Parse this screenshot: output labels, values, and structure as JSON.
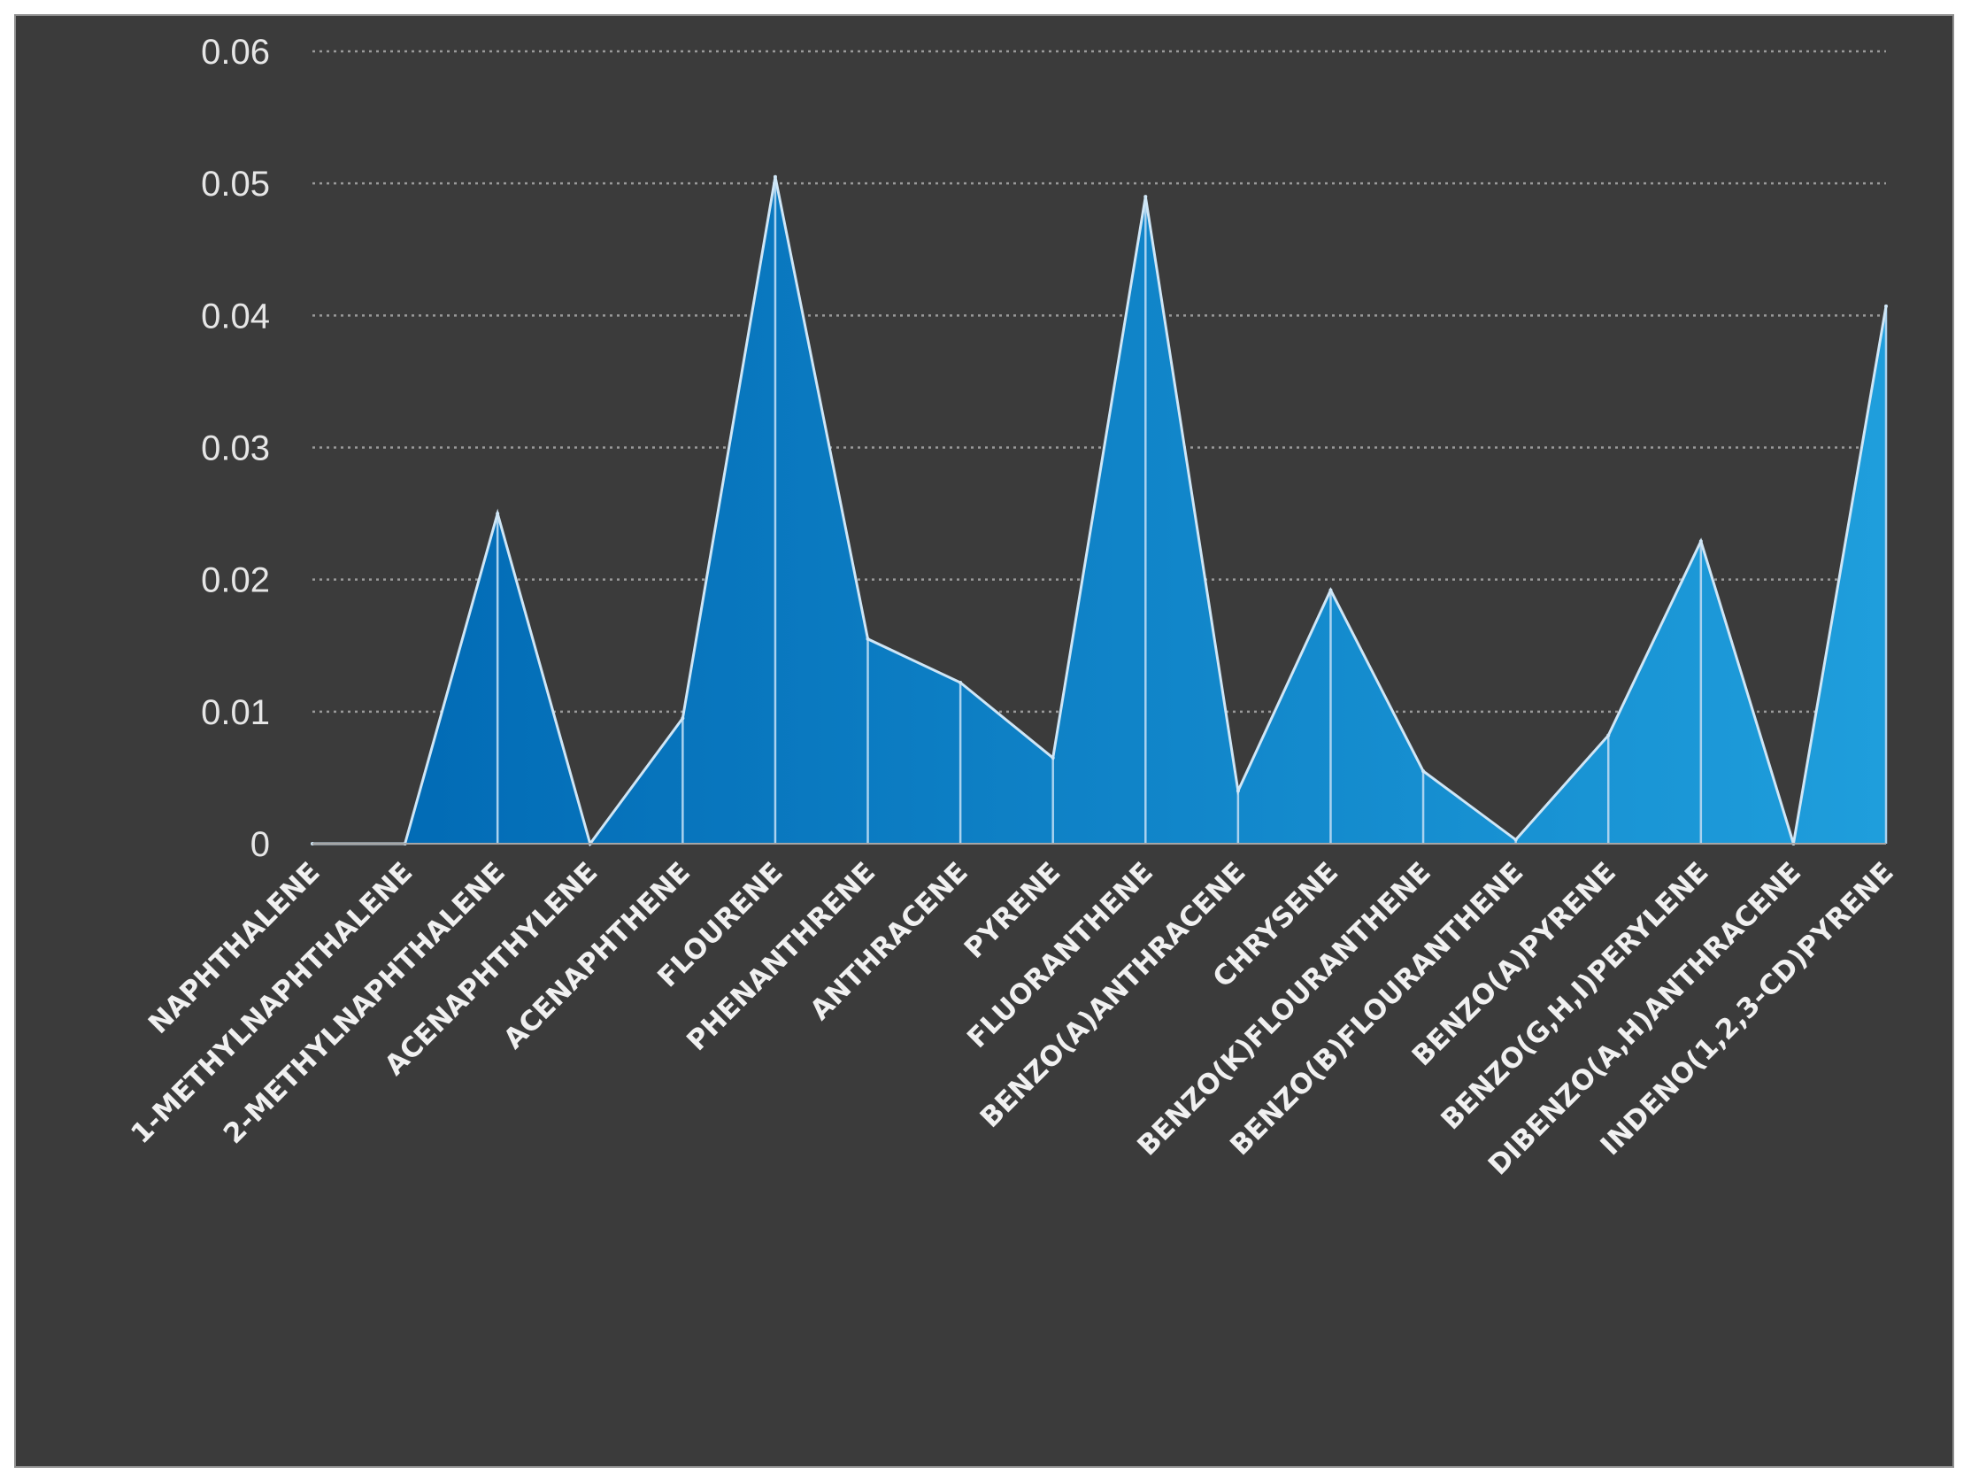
{
  "chart_data": {
    "type": "area",
    "title": "",
    "xlabel": "",
    "ylabel": "",
    "ylim": [
      0,
      0.06
    ],
    "yticks": [
      0,
      0.01,
      0.02,
      0.03,
      0.04,
      0.05,
      0.06
    ],
    "ytick_labels": [
      "0",
      "0.01",
      "0.02",
      "0.03",
      "0.04",
      "0.05",
      "0.06"
    ],
    "grid": true,
    "categories": [
      "NAPHTHALENE",
      "1-METHYLNAPHTHALENE",
      "2-METHYLNAPHTHALENE",
      "ACENAPHTHYLENE",
      "ACENAPHTHENE",
      "FLOURENE",
      "PHENANTHRENE",
      "ANTHRACENE",
      "PYRENE",
      "FLUORANTHENE",
      "BENZO(A)ANTHRACENE",
      "CHRYSENE",
      "BENZO(K)FLOURANTHENE",
      "BENZO(B)FLOURANTHENE",
      "BENZO(A)PYRENE",
      "BENZO(G,H,I)PERYLENE",
      "DIBENZO(A,H)ANTHRACENE",
      "INDENO(1,2,3-CD)PYRENE"
    ],
    "series": [
      {
        "name": "",
        "values": [
          0,
          0,
          0.025,
          0,
          0.0095,
          0.0505,
          0.0155,
          0.0122,
          0.0065,
          0.049,
          0.004,
          0.0192,
          0.0055,
          0.0003,
          0.0082,
          0.0229,
          0,
          0.0407
        ]
      }
    ],
    "colors": {
      "background": "#3b3b3b",
      "fill_dark": "#0068b3",
      "fill_light": "#1f9edc",
      "outline": "#cfe6f6",
      "text": "#e6e6e6"
    }
  }
}
